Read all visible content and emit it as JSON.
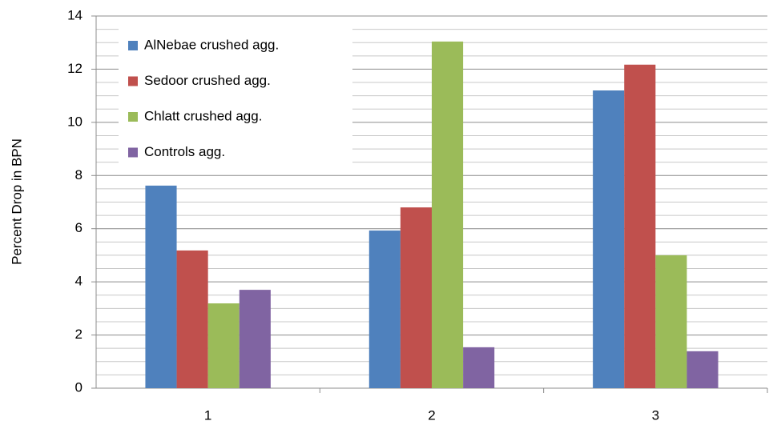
{
  "chart_data": {
    "type": "bar",
    "y_label": "Percent Drop in BPN",
    "categories": [
      "1",
      "2",
      "3"
    ],
    "series": [
      {
        "name": "AlNebae crushed agg.",
        "color": "#4f81bd",
        "values": [
          7.62,
          5.93,
          11.2
        ]
      },
      {
        "name": "Sedoor crushed agg.",
        "color": "#c0504d",
        "values": [
          5.18,
          6.8,
          12.17
        ]
      },
      {
        "name": "Chlatt crushed agg.",
        "color": "#9bbb59",
        "values": [
          3.19,
          13.04,
          5.0
        ]
      },
      {
        "name": "Controls agg.",
        "color": "#8064a2",
        "values": [
          3.7,
          1.54,
          1.39
        ]
      }
    ],
    "ylim": [
      0,
      14
    ],
    "yticks": [
      0,
      2,
      4,
      6,
      8,
      10,
      12,
      14
    ],
    "grid": true,
    "legend": "upper left"
  }
}
